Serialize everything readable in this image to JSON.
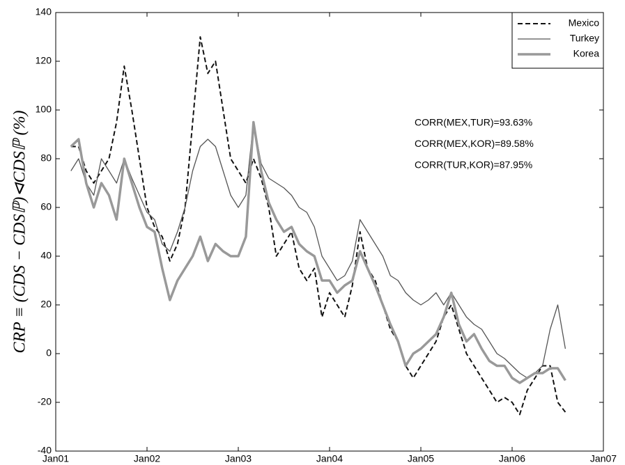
{
  "chart_data": {
    "type": "line",
    "ylabel": "CRP ≡ (CDS − CDSℙ)⊲CDSℙ (%)",
    "annotations": [
      "CORR(MEX,TUR)=93.63%",
      "CORR(MEX,KOR)=89.58%",
      "CORR(TUR,KOR)=87.95%"
    ],
    "x": [
      "2001-03",
      "2001-04",
      "2001-05",
      "2001-06",
      "2001-07",
      "2001-08",
      "2001-09",
      "2001-10",
      "2001-11",
      "2001-12",
      "2002-01",
      "2002-02",
      "2002-03",
      "2002-04",
      "2002-05",
      "2002-06",
      "2002-07",
      "2002-08",
      "2002-09",
      "2002-10",
      "2002-11",
      "2002-12",
      "2003-01",
      "2003-02",
      "2003-03",
      "2003-04",
      "2003-05",
      "2003-06",
      "2003-07",
      "2003-08",
      "2003-09",
      "2003-10",
      "2003-11",
      "2003-12",
      "2004-01",
      "2004-02",
      "2004-03",
      "2004-04",
      "2004-05",
      "2004-06",
      "2004-07",
      "2004-08",
      "2004-09",
      "2004-10",
      "2004-11",
      "2004-12",
      "2005-01",
      "2005-02",
      "2005-03",
      "2005-04",
      "2005-05",
      "2005-06",
      "2005-07",
      "2005-08",
      "2005-09",
      "2005-10",
      "2005-11",
      "2005-12",
      "2006-01",
      "2006-02",
      "2006-03",
      "2006-04",
      "2006-05",
      "2006-06",
      "2006-07",
      "2006-08"
    ],
    "series": [
      {
        "name": "Mexico",
        "color": "#111111",
        "linestyle": "dashed",
        "linewidth": 2,
        "values": [
          85,
          85,
          75,
          70,
          75,
          80,
          95,
          118,
          100,
          80,
          60,
          52,
          48,
          38,
          45,
          60,
          95,
          130,
          115,
          120,
          100,
          80,
          75,
          70,
          80,
          72,
          60,
          40,
          45,
          50,
          35,
          30,
          35,
          15,
          25,
          20,
          15,
          28,
          50,
          35,
          30,
          20,
          10,
          5,
          -5,
          -10,
          -5,
          0,
          5,
          15,
          20,
          10,
          0,
          -5,
          -10,
          -15,
          -20,
          -18,
          -20,
          -25,
          -15,
          -10,
          -5,
          -5,
          -20,
          -24
        ]
      },
      {
        "name": "Turkey",
        "color": "#555555",
        "linestyle": "solid",
        "linewidth": 1.3,
        "values": [
          75,
          80,
          70,
          65,
          80,
          75,
          70,
          80,
          72,
          65,
          58,
          55,
          45,
          42,
          50,
          60,
          75,
          85,
          88,
          85,
          75,
          65,
          60,
          65,
          95,
          78,
          72,
          70,
          68,
          65,
          60,
          58,
          52,
          40,
          35,
          30,
          32,
          38,
          55,
          50,
          45,
          40,
          32,
          30,
          25,
          22,
          20,
          22,
          25,
          20,
          25,
          20,
          15,
          12,
          10,
          5,
          0,
          -2,
          -5,
          -8,
          -10,
          -8,
          -5,
          10,
          20,
          2
        ]
      },
      {
        "name": "Korea",
        "color": "#999999",
        "linestyle": "solid",
        "linewidth": 3.5,
        "values": [
          85,
          88,
          70,
          60,
          70,
          65,
          55,
          80,
          70,
          60,
          52,
          50,
          35,
          22,
          30,
          35,
          40,
          48,
          38,
          45,
          42,
          40,
          40,
          48,
          95,
          75,
          62,
          55,
          50,
          52,
          45,
          42,
          40,
          30,
          30,
          25,
          28,
          30,
          42,
          35,
          28,
          20,
          12,
          5,
          -5,
          0,
          2,
          5,
          8,
          15,
          25,
          12,
          5,
          8,
          2,
          -3,
          -5,
          -5,
          -10,
          -12,
          -10,
          -8,
          -8,
          -6,
          -6,
          -11
        ]
      }
    ],
    "xlim": [
      "2001-01",
      "2007-01"
    ],
    "xticks": [
      {
        "value": "2001-01",
        "label": "Jan01"
      },
      {
        "value": "2002-01",
        "label": "Jan02"
      },
      {
        "value": "2003-01",
        "label": "Jan03"
      },
      {
        "value": "2004-01",
        "label": "Jan04"
      },
      {
        "value": "2005-01",
        "label": "Jan05"
      },
      {
        "value": "2006-01",
        "label": "Jan06"
      },
      {
        "value": "2007-01",
        "label": "Jan07"
      }
    ],
    "ylim": [
      -40,
      140
    ],
    "yticks": [
      -40,
      -20,
      0,
      20,
      40,
      60,
      80,
      100,
      120,
      140
    ],
    "grid": false,
    "legend": "upper right"
  }
}
